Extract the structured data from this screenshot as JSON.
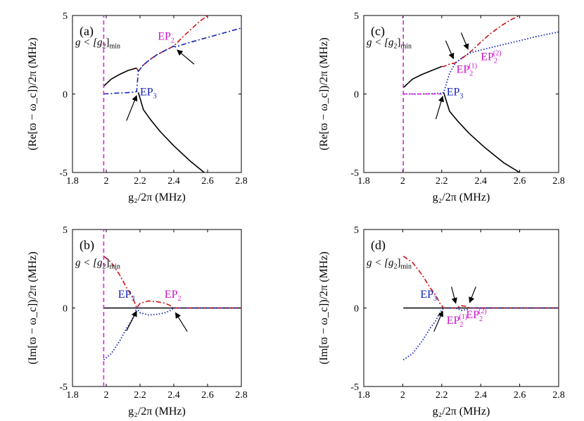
{
  "chart_data": [
    {
      "panel": "(a)",
      "type": "line",
      "xlabel": "g₂/2π (MHz)",
      "ylabel": "(Re[ϖ − ω_c])/2π (MHz)",
      "xlim": [
        1.8,
        2.8
      ],
      "ylim": [
        -5,
        5
      ],
      "xticks": [
        "1.8",
        "2",
        "2.2",
        "2.4",
        "2.6",
        "2.8"
      ],
      "yticks": [
        "5",
        "0",
        "-5"
      ],
      "xtick_values": [
        1.8,
        2.0,
        2.2,
        2.4,
        2.6,
        2.8
      ],
      "ytick_values": [
        5,
        0,
        -5
      ],
      "note": {
        "pre": "g < [g",
        "sub1": "2",
        "post": "]",
        "sub2": "min",
        "x": 1.8,
        "y": 3.1
      },
      "vline_x": 1.985,
      "series": [
        {
          "name": "black-solid",
          "color": "#000000",
          "dash": "",
          "x": [
            1.985,
            2.03,
            2.08,
            2.13,
            2.18
          ],
          "y": [
            0.5,
            0.95,
            1.25,
            1.5,
            1.65
          ]
        },
        {
          "name": "black-solid-lower",
          "color": "#000000",
          "dash": "",
          "x": [
            2.19,
            2.22,
            2.26,
            2.32,
            2.4,
            2.5,
            2.58
          ],
          "y": [
            0.1,
            -1.0,
            -1.6,
            -2.4,
            -3.3,
            -4.3,
            -5.0
          ]
        },
        {
          "name": "red-dashdot",
          "color": "#cc1111",
          "dash": "7,3,2,3",
          "x": [
            2.18,
            2.19,
            2.22,
            2.26,
            2.3,
            2.35,
            2.4,
            2.45,
            2.5,
            2.55,
            2.6
          ],
          "y": [
            1.65,
            1.45,
            1.85,
            2.2,
            2.5,
            2.78,
            3.05,
            3.6,
            4.1,
            4.6,
            5.0
          ]
        },
        {
          "name": "blue-dashdot",
          "color": "#1122bb",
          "dash": "7,3,2,3",
          "x": [
            1.985,
            2.05,
            2.1,
            2.15,
            2.18,
            2.19,
            2.22,
            2.26,
            2.3,
            2.35,
            2.4,
            2.41,
            2.5,
            2.6,
            2.7,
            2.8
          ],
          "y": [
            0.0,
            0.05,
            0.07,
            0.1,
            0.15,
            1.45,
            1.85,
            2.2,
            2.5,
            2.78,
            3.05,
            3.0,
            3.3,
            3.6,
            3.9,
            4.2
          ]
        },
        {
          "name": "magenta-dashed-vline",
          "color": "#e020e0",
          "dash": "6,4",
          "x": [
            1.985,
            1.985
          ],
          "y": [
            -5,
            5
          ]
        }
      ],
      "annotations": [
        {
          "label": "EP",
          "sub": "2",
          "sup": "",
          "color": "#cc11cc",
          "x": 2.305,
          "y": 3.45
        },
        {
          "label": "EP",
          "sub": "3",
          "sup": "",
          "color": "#1122bb",
          "x": 2.2,
          "y": -0.1
        }
      ],
      "arrows": [
        {
          "from": [
            2.12,
            -1.7
          ],
          "to": [
            2.18,
            -0.1
          ]
        },
        {
          "from": [
            2.52,
            1.9
          ],
          "to": [
            2.42,
            2.8
          ]
        }
      ]
    },
    {
      "panel": "(b)",
      "type": "line",
      "xlabel": "g₂/2π (MHz)",
      "ylabel": "(Im[ϖ − ω_c])/2π (MHz)",
      "xlim": [
        1.8,
        2.8
      ],
      "ylim": [
        -5,
        5
      ],
      "xticks": [
        "1.8",
        "2",
        "2.2",
        "2.4",
        "2.6",
        "2.8"
      ],
      "yticks": [
        "5",
        "0",
        "-5"
      ],
      "xtick_values": [
        1.8,
        2.0,
        2.2,
        2.4,
        2.6,
        2.8
      ],
      "ytick_values": [
        5,
        0,
        -5
      ],
      "note": {
        "pre": "g < [g",
        "sub1": "2",
        "post": "]",
        "sub2": "min",
        "x": 1.8,
        "y": 2.7
      },
      "vline_x": 1.985,
      "series": [
        {
          "name": "black-solid",
          "color": "#000000",
          "dash": "",
          "x": [
            1.985,
            2.8
          ],
          "y": [
            0.0,
            0.0
          ]
        },
        {
          "name": "red-dashdot",
          "color": "#cc1111",
          "dash": "7,3,2,3",
          "x": [
            1.985,
            2.03,
            2.08,
            2.12,
            2.15,
            2.17,
            2.18,
            2.2,
            2.25,
            2.3,
            2.35,
            2.38,
            2.4,
            2.8
          ],
          "y": [
            3.3,
            2.9,
            2.1,
            1.3,
            0.8,
            0.3,
            0.0,
            0.3,
            0.45,
            0.4,
            0.3,
            0.15,
            0.0,
            0.0
          ]
        },
        {
          "name": "blue-dotted",
          "color": "#1122bb",
          "dash": "1.5,2.5",
          "x": [
            1.985,
            2.03,
            2.08,
            2.12,
            2.15,
            2.17,
            2.18,
            2.2,
            2.25,
            2.3,
            2.35,
            2.38,
            2.4,
            2.8
          ],
          "y": [
            -3.3,
            -2.9,
            -2.1,
            -1.3,
            -0.8,
            -0.3,
            0.0,
            -0.3,
            -0.45,
            -0.4,
            -0.3,
            -0.15,
            0.0,
            0.0
          ]
        },
        {
          "name": "magenta-dashed-vline",
          "color": "#e020e0",
          "dash": "6,4",
          "x": [
            1.985,
            1.985
          ],
          "y": [
            -5,
            5
          ]
        }
      ],
      "annotations": [
        {
          "label": "EP",
          "sub": "3",
          "sup": "",
          "color": "#1122bb",
          "x": 2.07,
          "y": 0.65
        },
        {
          "label": "EP",
          "sub": "2",
          "sup": "",
          "color": "#cc11cc",
          "x": 2.345,
          "y": 0.65
        }
      ],
      "arrows": [
        {
          "from": [
            2.12,
            -1.45
          ],
          "to": [
            2.18,
            -0.2
          ]
        },
        {
          "from": [
            2.48,
            -1.5
          ],
          "to": [
            2.41,
            -0.3
          ]
        }
      ]
    },
    {
      "panel": "(c)",
      "type": "line",
      "xlabel": "g₂/2π (MHz)",
      "ylabel": "(Re[ϖ − ω_c])/2π (MHz)",
      "xlim": [
        1.8,
        2.8
      ],
      "ylim": [
        -5,
        5
      ],
      "xticks": [
        "1.8",
        "2",
        "2.2",
        "2.4",
        "2.6",
        "2.8"
      ],
      "yticks": [
        "5",
        "0",
        "-5"
      ],
      "xtick_values": [
        1.8,
        2.0,
        2.2,
        2.4,
        2.6,
        2.8
      ],
      "ytick_values": [
        5,
        0,
        -5
      ],
      "note": {
        "pre": "g < [g",
        "sub1": "2",
        "post": "]",
        "sub2": "min",
        "x": 1.8,
        "y": 3.1
      },
      "vline_x": 2.003,
      "series": [
        {
          "name": "black-solid",
          "color": "#000000",
          "dash": "",
          "x": [
            2.003,
            2.05,
            2.1,
            2.15,
            2.2
          ],
          "y": [
            0.4,
            0.95,
            1.25,
            1.5,
            1.75
          ]
        },
        {
          "name": "black-solid-lower",
          "color": "#000000",
          "dash": "",
          "x": [
            2.21,
            2.24,
            2.28,
            2.34,
            2.42,
            2.52,
            2.6
          ],
          "y": [
            0.1,
            -1.1,
            -1.7,
            -2.5,
            -3.4,
            -4.4,
            -5.0
          ]
        },
        {
          "name": "red-dashdot",
          "color": "#cc1111",
          "dash": "7,3,2,3",
          "x": [
            2.2,
            2.21,
            2.24,
            2.27,
            2.3,
            2.33,
            2.34,
            2.4,
            2.45,
            2.5,
            2.55,
            2.6
          ],
          "y": [
            1.75,
            1.75,
            1.9,
            1.98,
            2.25,
            2.5,
            2.6,
            3.3,
            3.85,
            4.3,
            4.7,
            5.0
          ]
        },
        {
          "name": "blue-dotted",
          "color": "#1122bb",
          "dash": "1.5,2.5",
          "x": [
            2.003,
            2.1,
            2.2,
            2.21,
            2.24,
            2.27,
            2.3,
            2.34,
            2.4,
            2.5,
            2.6,
            2.7,
            2.8
          ],
          "y": [
            0.0,
            0.0,
            0.05,
            0.1,
            1.3,
            1.98,
            2.25,
            2.6,
            2.8,
            3.1,
            3.4,
            3.7,
            3.95
          ]
        },
        {
          "name": "magenta-dashed-line",
          "color": "#e020e0",
          "dash": "6,4",
          "x": [
            2.003,
            2.2
          ],
          "y": [
            0.0,
            0.0
          ]
        },
        {
          "name": "magenta-dashed-vline",
          "color": "#e020e0",
          "dash": "6,4",
          "x": [
            2.003,
            2.003
          ],
          "y": [
            -5,
            5
          ]
        }
      ],
      "annotations": [
        {
          "label": "EP",
          "sub": "3",
          "sup": "",
          "color": "#1122bb",
          "x": 2.225,
          "y": -0.1
        },
        {
          "label": "EP",
          "sub": "2",
          "sup": "(1)",
          "color": "#cc11cc",
          "x": 2.275,
          "y": 1.35
        },
        {
          "label": "EP",
          "sub": "2",
          "sup": "(2)",
          "color": "#cc11cc",
          "x": 2.4,
          "y": 2.15
        }
      ],
      "arrows": [
        {
          "from": [
            2.17,
            -1.6
          ],
          "to": [
            2.205,
            -0.15
          ]
        },
        {
          "from": [
            2.22,
            3.4
          ],
          "to": [
            2.26,
            2.25
          ]
        },
        {
          "from": [
            2.3,
            3.9
          ],
          "to": [
            2.335,
            2.85
          ]
        }
      ]
    },
    {
      "panel": "(d)",
      "type": "line",
      "xlabel": "g₂/2π (MHz)",
      "ylabel": "(Im[ϖ − ω_c])/2π (MHz)",
      "xlim": [
        1.8,
        2.8
      ],
      "ylim": [
        -5,
        5
      ],
      "xticks": [
        "1.8",
        "2",
        "2.2",
        "2.4",
        "2.6",
        "2.8"
      ],
      "yticks": [
        "5",
        "0",
        "-5"
      ],
      "xtick_values": [
        1.8,
        2.0,
        2.2,
        2.4,
        2.6,
        2.8
      ],
      "ytick_values": [
        5,
        0,
        -5
      ],
      "note": {
        "pre": "g < [g",
        "sub1": "2",
        "post": "]",
        "sub2": "min",
        "x": 1.8,
        "y": 2.7
      },
      "vline_x": 2.003,
      "series": [
        {
          "name": "black-solid",
          "color": "#000000",
          "dash": "",
          "x": [
            2.003,
            2.8
          ],
          "y": [
            0.0,
            0.0
          ]
        },
        {
          "name": "red-dashdot",
          "color": "#cc1111",
          "dash": "7,3,2,3",
          "x": [
            2.003,
            2.05,
            2.1,
            2.14,
            2.17,
            2.19,
            2.21,
            2.25,
            2.27,
            2.3,
            2.33,
            2.34,
            2.8
          ],
          "y": [
            3.3,
            2.9,
            2.1,
            1.3,
            0.8,
            0.3,
            0.0,
            0.0,
            0.0,
            0.15,
            0.1,
            0.0,
            0.0
          ]
        },
        {
          "name": "blue-dotted",
          "color": "#1122bb",
          "dash": "1.5,2.5",
          "x": [
            2.003,
            2.05,
            2.1,
            2.14,
            2.17,
            2.19,
            2.21,
            2.25,
            2.27,
            2.3,
            2.33,
            2.34,
            2.8
          ],
          "y": [
            -3.3,
            -2.9,
            -2.1,
            -1.3,
            -0.8,
            -0.3,
            0.0,
            0.0,
            0.0,
            -0.15,
            -0.1,
            0.0,
            0.0
          ]
        }
      ],
      "annotations": [
        {
          "label": "EP",
          "sub": "3",
          "sup": "",
          "color": "#1122bb",
          "x": 2.09,
          "y": 0.65
        },
        {
          "label": "EP",
          "sub": "2",
          "sup": "(1)",
          "color": "#cc11cc",
          "x": 2.225,
          "y": -1.0
        },
        {
          "label": "EP",
          "sub": "2",
          "sup": "(2)",
          "color": "#cc11cc",
          "x": 2.325,
          "y": -0.65
        }
      ],
      "arrows": [
        {
          "from": [
            2.16,
            -1.5
          ],
          "to": [
            2.205,
            -0.2
          ]
        },
        {
          "from": [
            2.25,
            1.35
          ],
          "to": [
            2.272,
            0.3
          ]
        },
        {
          "from": [
            2.375,
            1.35
          ],
          "to": [
            2.343,
            0.35
          ]
        }
      ]
    }
  ]
}
